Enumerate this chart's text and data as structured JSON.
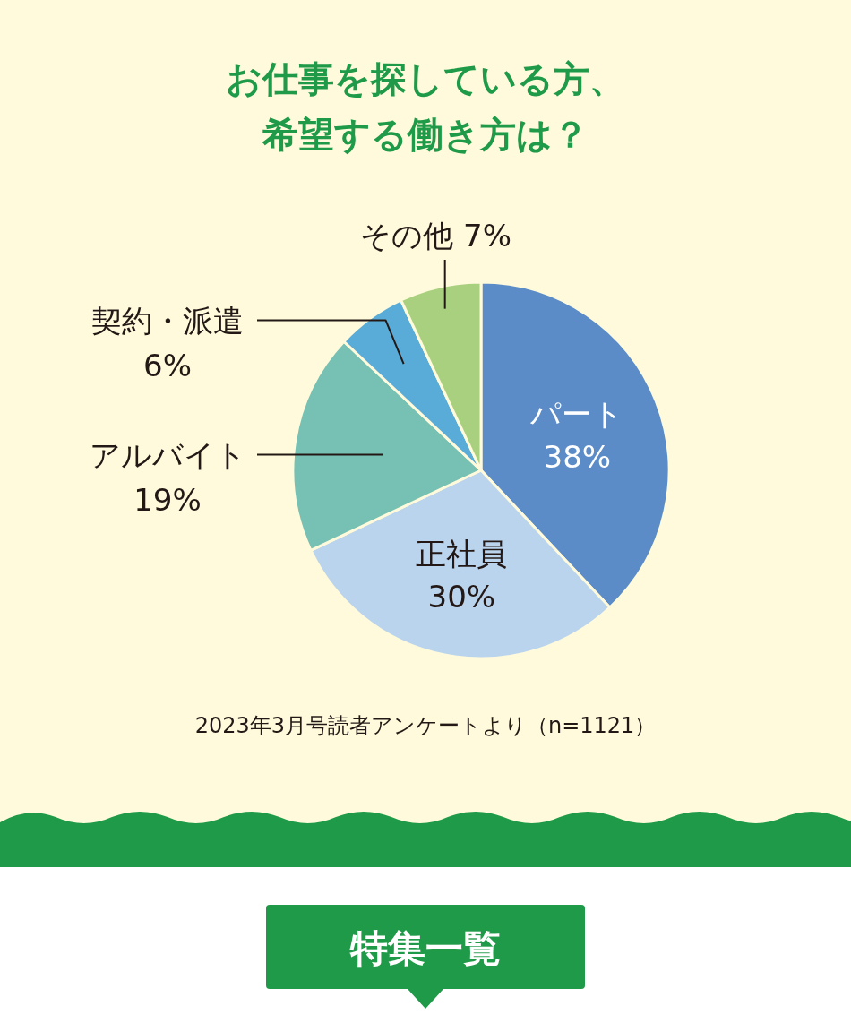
{
  "chart_data": {
    "type": "pie",
    "title": "お仕事を探している方、希望する働き方は？",
    "categories": [
      "パート",
      "正社員",
      "アルバイト",
      "契約・派遣",
      "その他"
    ],
    "values": [
      38,
      30,
      19,
      6,
      7
    ],
    "value_labels": [
      "38%",
      "30%",
      "19%",
      "6%",
      "7%"
    ],
    "colors": [
      "#5b8cc8",
      "#bad4ee",
      "#76c0b4",
      "#5aacd8",
      "#a9d07f"
    ],
    "annotations": [
      "2023年3月号読者アンケートより（n=1121）",
      "特集一覧"
    ]
  }
}
